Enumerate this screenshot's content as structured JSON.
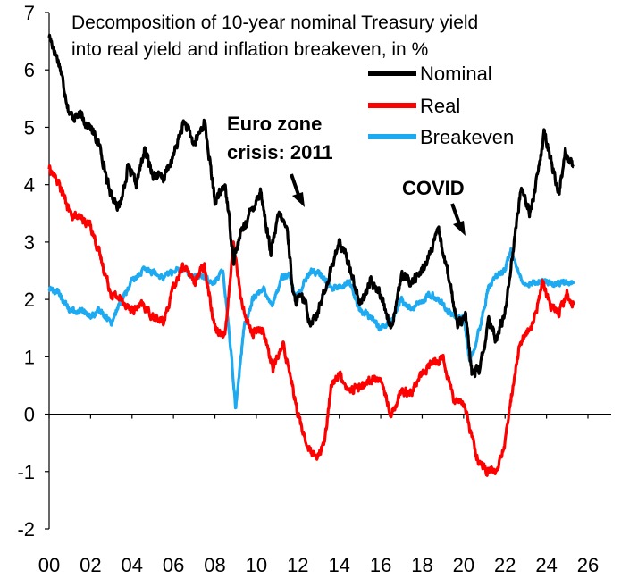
{
  "chart_data": {
    "type": "line",
    "title_lines": [
      "Decomposition of 10-year nominal Treasury yield",
      "into real yield and inflation breakeven, in %"
    ],
    "xlabel": "",
    "ylabel": "",
    "x_ticks": [
      "00",
      "02",
      "04",
      "06",
      "08",
      "10",
      "12",
      "14",
      "16",
      "18",
      "20",
      "22",
      "24",
      "26"
    ],
    "y_ticks": [
      "-2",
      "-1",
      "0",
      "1",
      "2",
      "3",
      "4",
      "5",
      "6",
      "7"
    ],
    "xlim": [
      2000,
      2026
    ],
    "ylim": [
      -2,
      7
    ],
    "grid": false,
    "legend_position": "top-right",
    "series": [
      {
        "name": "Nominal",
        "color": "#000000",
        "points": [
          [
            2000.0,
            6.6
          ],
          [
            2000.5,
            6.1
          ],
          [
            2001.0,
            5.2
          ],
          [
            2001.5,
            5.2
          ],
          [
            2002.0,
            5.0
          ],
          [
            2002.5,
            4.6
          ],
          [
            2002.9,
            3.9
          ],
          [
            2003.4,
            3.6
          ],
          [
            2003.8,
            4.3
          ],
          [
            2004.2,
            4.0
          ],
          [
            2004.6,
            4.6
          ],
          [
            2005.0,
            4.2
          ],
          [
            2005.5,
            4.1
          ],
          [
            2006.0,
            4.5
          ],
          [
            2006.5,
            5.1
          ],
          [
            2007.0,
            4.7
          ],
          [
            2007.5,
            5.1
          ],
          [
            2008.0,
            3.7
          ],
          [
            2008.5,
            4.0
          ],
          [
            2008.9,
            2.7
          ],
          [
            2009.3,
            3.2
          ],
          [
            2009.7,
            3.5
          ],
          [
            2010.2,
            3.9
          ],
          [
            2010.7,
            2.8
          ],
          [
            2011.1,
            3.5
          ],
          [
            2011.5,
            3.2
          ],
          [
            2011.8,
            2.0
          ],
          [
            2012.3,
            2.0
          ],
          [
            2012.6,
            1.6
          ],
          [
            2013.0,
            1.8
          ],
          [
            2013.5,
            2.4
          ],
          [
            2014.0,
            3.0
          ],
          [
            2014.5,
            2.6
          ],
          [
            2015.0,
            1.9
          ],
          [
            2015.5,
            2.3
          ],
          [
            2016.0,
            2.1
          ],
          [
            2016.5,
            1.5
          ],
          [
            2017.0,
            2.4
          ],
          [
            2017.5,
            2.3
          ],
          [
            2018.0,
            2.5
          ],
          [
            2018.5,
            2.9
          ],
          [
            2018.8,
            3.2
          ],
          [
            2019.2,
            2.5
          ],
          [
            2019.7,
            1.6
          ],
          [
            2020.1,
            1.7
          ],
          [
            2020.4,
            0.7
          ],
          [
            2020.8,
            0.8
          ],
          [
            2021.2,
            1.6
          ],
          [
            2021.6,
            1.3
          ],
          [
            2022.0,
            1.8
          ],
          [
            2022.4,
            2.9
          ],
          [
            2022.8,
            4.0
          ],
          [
            2023.2,
            3.5
          ],
          [
            2023.6,
            4.2
          ],
          [
            2023.9,
            4.9
          ],
          [
            2024.3,
            4.3
          ],
          [
            2024.6,
            3.8
          ],
          [
            2024.9,
            4.6
          ],
          [
            2025.3,
            4.3
          ]
        ]
      },
      {
        "name": "Real",
        "color": "#ff0000",
        "points": [
          [
            2000.0,
            4.3
          ],
          [
            2000.5,
            4.0
          ],
          [
            2001.0,
            3.5
          ],
          [
            2001.5,
            3.4
          ],
          [
            2002.0,
            3.3
          ],
          [
            2002.5,
            2.7
          ],
          [
            2003.0,
            2.1
          ],
          [
            2003.5,
            2.0
          ],
          [
            2004.0,
            1.8
          ],
          [
            2004.5,
            1.9
          ],
          [
            2005.0,
            1.7
          ],
          [
            2005.5,
            1.6
          ],
          [
            2006.0,
            2.2
          ],
          [
            2006.5,
            2.6
          ],
          [
            2007.0,
            2.3
          ],
          [
            2007.5,
            2.6
          ],
          [
            2008.0,
            1.5
          ],
          [
            2008.5,
            1.4
          ],
          [
            2008.9,
            3.0
          ],
          [
            2009.3,
            1.9
          ],
          [
            2009.8,
            1.4
          ],
          [
            2010.3,
            1.5
          ],
          [
            2010.8,
            0.8
          ],
          [
            2011.3,
            1.2
          ],
          [
            2011.7,
            0.6
          ],
          [
            2012.0,
            0.0
          ],
          [
            2012.5,
            -0.6
          ],
          [
            2012.9,
            -0.8
          ],
          [
            2013.3,
            -0.5
          ],
          [
            2013.6,
            0.5
          ],
          [
            2014.0,
            0.7
          ],
          [
            2014.5,
            0.4
          ],
          [
            2015.0,
            0.5
          ],
          [
            2015.5,
            0.6
          ],
          [
            2016.0,
            0.6
          ],
          [
            2016.5,
            0.0
          ],
          [
            2017.0,
            0.4
          ],
          [
            2017.5,
            0.4
          ],
          [
            2018.0,
            0.7
          ],
          [
            2018.5,
            0.9
          ],
          [
            2019.0,
            1.0
          ],
          [
            2019.5,
            0.3
          ],
          [
            2020.0,
            0.2
          ],
          [
            2020.4,
            -0.4
          ],
          [
            2020.8,
            -0.9
          ],
          [
            2021.2,
            -1.0
          ],
          [
            2021.6,
            -1.0
          ],
          [
            2022.0,
            -0.5
          ],
          [
            2022.3,
            0.3
          ],
          [
            2022.7,
            1.2
          ],
          [
            2023.0,
            1.4
          ],
          [
            2023.4,
            1.6
          ],
          [
            2023.8,
            2.3
          ],
          [
            2024.2,
            1.9
          ],
          [
            2024.6,
            1.8
          ],
          [
            2025.0,
            2.1
          ],
          [
            2025.3,
            1.9
          ]
        ]
      },
      {
        "name": "Breakeven",
        "color": "#1eaaf0",
        "points": [
          [
            2000.0,
            2.2
          ],
          [
            2000.5,
            2.1
          ],
          [
            2001.0,
            1.8
          ],
          [
            2001.5,
            1.8
          ],
          [
            2002.0,
            1.7
          ],
          [
            2002.5,
            1.8
          ],
          [
            2003.0,
            1.6
          ],
          [
            2003.5,
            2.0
          ],
          [
            2004.0,
            2.3
          ],
          [
            2004.5,
            2.5
          ],
          [
            2005.0,
            2.5
          ],
          [
            2005.5,
            2.4
          ],
          [
            2006.0,
            2.5
          ],
          [
            2006.5,
            2.5
          ],
          [
            2007.0,
            2.4
          ],
          [
            2007.5,
            2.4
          ],
          [
            2008.0,
            2.3
          ],
          [
            2008.4,
            2.5
          ],
          [
            2008.8,
            1.0
          ],
          [
            2009.0,
            0.1
          ],
          [
            2009.4,
            1.5
          ],
          [
            2009.8,
            2.0
          ],
          [
            2010.3,
            2.2
          ],
          [
            2010.8,
            1.9
          ],
          [
            2011.2,
            2.4
          ],
          [
            2011.6,
            2.4
          ],
          [
            2011.9,
            2.0
          ],
          [
            2012.3,
            2.3
          ],
          [
            2012.7,
            2.5
          ],
          [
            2013.2,
            2.4
          ],
          [
            2013.6,
            2.2
          ],
          [
            2014.0,
            2.2
          ],
          [
            2014.5,
            2.3
          ],
          [
            2015.0,
            1.8
          ],
          [
            2015.5,
            1.7
          ],
          [
            2016.0,
            1.5
          ],
          [
            2016.5,
            1.6
          ],
          [
            2017.0,
            2.0
          ],
          [
            2017.5,
            1.8
          ],
          [
            2018.0,
            2.0
          ],
          [
            2018.5,
            2.1
          ],
          [
            2019.0,
            1.9
          ],
          [
            2019.5,
            1.7
          ],
          [
            2020.0,
            1.7
          ],
          [
            2020.3,
            0.9
          ],
          [
            2020.7,
            1.4
          ],
          [
            2021.2,
            2.2
          ],
          [
            2021.6,
            2.4
          ],
          [
            2022.0,
            2.5
          ],
          [
            2022.3,
            2.9
          ],
          [
            2022.7,
            2.4
          ],
          [
            2023.0,
            2.3
          ],
          [
            2023.5,
            2.3
          ],
          [
            2024.0,
            2.3
          ],
          [
            2024.5,
            2.3
          ],
          [
            2024.9,
            2.3
          ],
          [
            2025.3,
            2.3
          ]
        ]
      }
    ],
    "annotations": [
      {
        "lines": [
          "Euro zone",
          "crisis: 2011"
        ]
      },
      {
        "lines": [
          "COVID"
        ]
      }
    ]
  }
}
